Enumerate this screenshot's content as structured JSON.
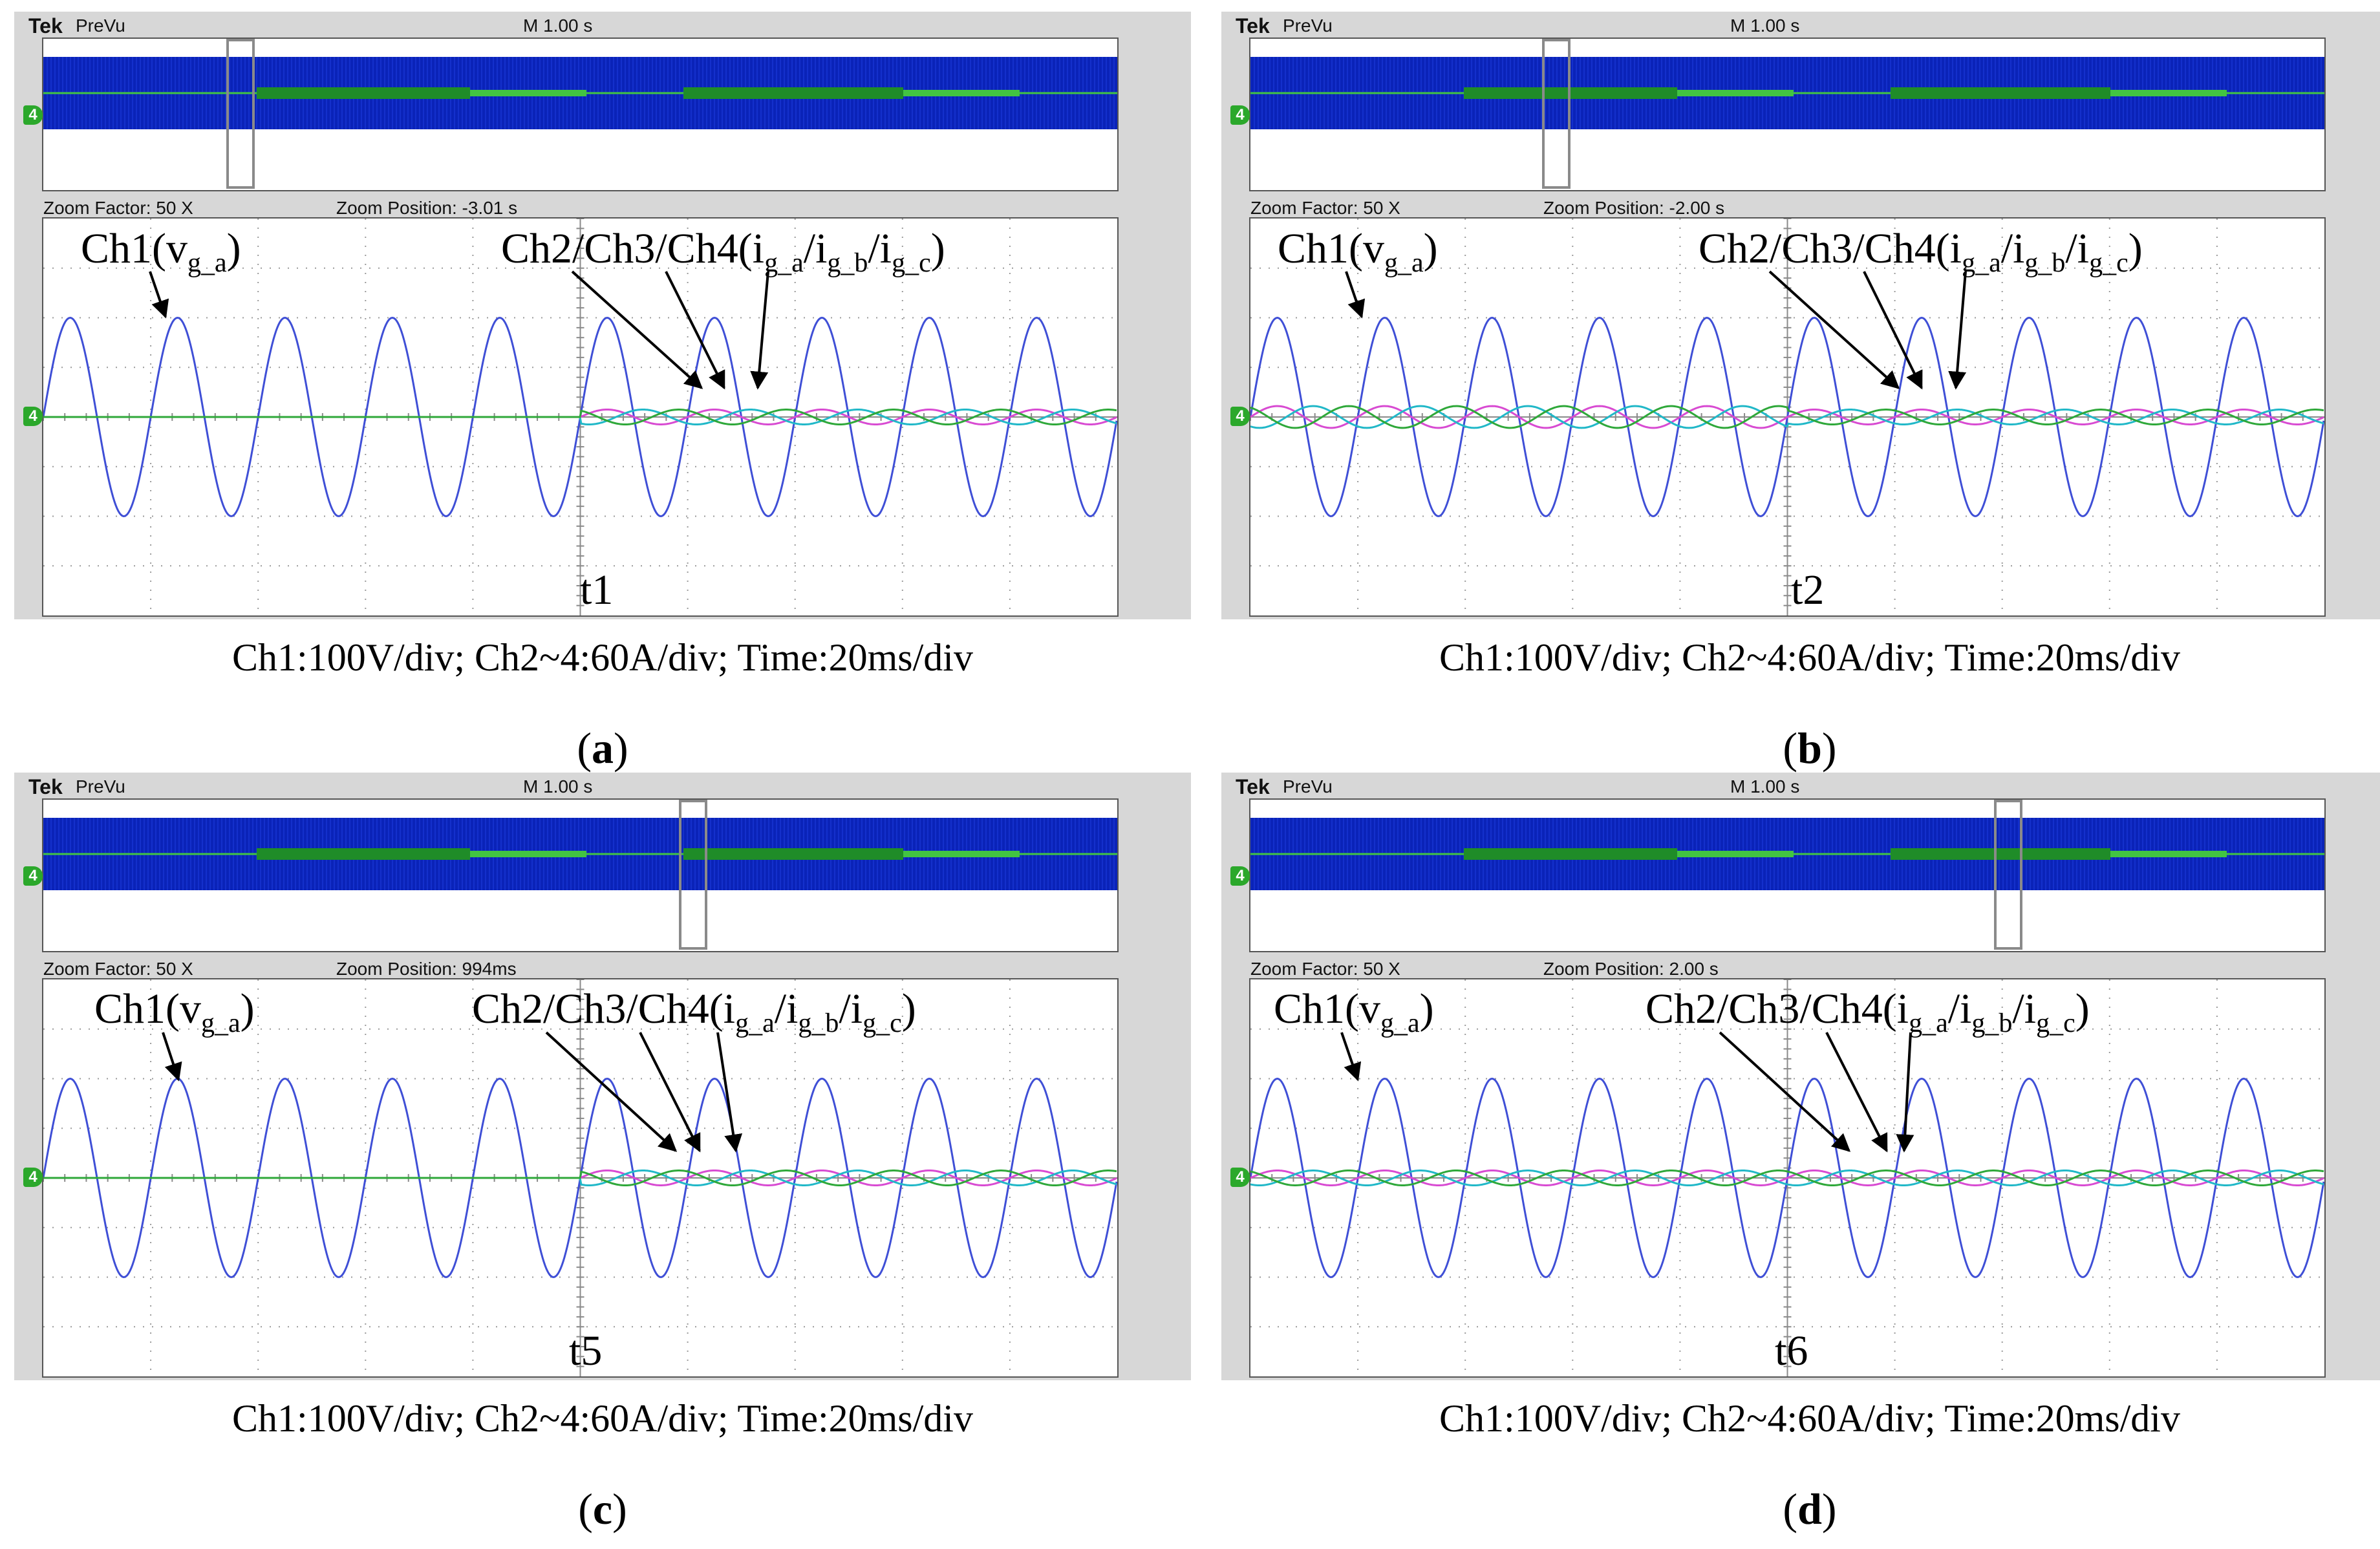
{
  "colors": {
    "ch1": "#3f4fd6",
    "ch2": "#d84bd2",
    "ch3": "#21b8c8",
    "ch4": "#2fa83a",
    "overview_band": "#0a23b8",
    "overview_green": "#1f8c28",
    "trigger": "#f29a1a"
  },
  "common": {
    "brand": "Tek",
    "mode": "PreVu",
    "timebase": "M 1.00 s",
    "zoom_factor": "Zoom Factor: 50 X",
    "ch1_label": "Ch1(v",
    "ch1_sub": "g_a",
    "ch234_label": "Ch2/Ch3/Ch4(i",
    "ch234_sub1": "g_a",
    "ch234_sub2": "g_b",
    "ch234_sub3": "g_c",
    "slash": "/",
    "close": ")",
    "scale_caption": "Ch1:100V/div; Ch2~4:60A/div; Time:20ms/div",
    "ground_marker": "4"
  },
  "panels": [
    {
      "id": "a",
      "zoom_position": "Zoom Position: -3.01 s",
      "event_label": "t1",
      "label_open": "(",
      "label_letter": "a",
      "label_close": ")"
    },
    {
      "id": "b",
      "zoom_position": "Zoom Position: -2.00 s",
      "event_label": "t2",
      "label_open": "(",
      "label_letter": "b",
      "label_close": ")"
    },
    {
      "id": "c",
      "zoom_position": "Zoom Position: 994ms",
      "event_label": "t5",
      "label_open": "(",
      "label_letter": "c",
      "label_close": ")"
    },
    {
      "id": "d",
      "zoom_position": "Zoom Position: 2.00 s",
      "event_label": "t6",
      "label_open": "(",
      "label_letter": "d",
      "label_close": ")"
    }
  ],
  "chart_data": [
    {
      "type": "line",
      "panel": "a",
      "x_unit": "ms",
      "x_range": [
        0,
        200
      ],
      "y_range": [
        -4,
        4
      ],
      "series": [
        {
          "channel": "Ch1",
          "amplitude_div": 2.0,
          "frequency_hz": 50,
          "phase_deg": 0
        },
        {
          "channel": "Ch2",
          "amplitude_div": 0.15,
          "frequency_hz": 50,
          "phase_deg": 0,
          "starts_at_ms": 100
        },
        {
          "channel": "Ch3",
          "amplitude_div": 0.15,
          "frequency_hz": 50,
          "phase_deg": -120,
          "starts_at_ms": 100
        },
        {
          "channel": "Ch4",
          "amplitude_div": 0.15,
          "frequency_hz": 50,
          "phase_deg": 120,
          "starts_at_ms": 100
        }
      ]
    },
    {
      "type": "line",
      "panel": "b",
      "x_unit": "ms",
      "x_range": [
        0,
        200
      ],
      "y_range": [
        -4,
        4
      ],
      "series": [
        {
          "channel": "Ch1",
          "amplitude_div": 2.0,
          "frequency_hz": 50,
          "phase_deg": 0
        },
        {
          "channel": "Ch2",
          "amplitude_div": 0.22,
          "frequency_hz": 50,
          "phase_deg": 0,
          "amplitude_after_ms": 100,
          "amplitude_after_div": 0.15
        },
        {
          "channel": "Ch3",
          "amplitude_div": 0.22,
          "frequency_hz": 50,
          "phase_deg": -120,
          "amplitude_after_ms": 100,
          "amplitude_after_div": 0.15
        },
        {
          "channel": "Ch4",
          "amplitude_div": 0.22,
          "frequency_hz": 50,
          "phase_deg": 120,
          "amplitude_after_ms": 100,
          "amplitude_after_div": 0.15
        }
      ]
    },
    {
      "type": "line",
      "panel": "c",
      "x_unit": "ms",
      "x_range": [
        0,
        200
      ],
      "y_range": [
        -4,
        4
      ],
      "series": [
        {
          "channel": "Ch1",
          "amplitude_div": 2.0,
          "frequency_hz": 50,
          "phase_deg": 0
        },
        {
          "channel": "Ch2",
          "amplitude_div": 0.15,
          "frequency_hz": 50,
          "phase_deg": 0,
          "starts_at_ms": 100
        },
        {
          "channel": "Ch3",
          "amplitude_div": 0.15,
          "frequency_hz": 50,
          "phase_deg": -120,
          "starts_at_ms": 100
        },
        {
          "channel": "Ch4",
          "amplitude_div": 0.15,
          "frequency_hz": 50,
          "phase_deg": 120,
          "starts_at_ms": 100
        }
      ]
    },
    {
      "type": "line",
      "panel": "d",
      "x_unit": "ms",
      "x_range": [
        0,
        200
      ],
      "y_range": [
        -4,
        4
      ],
      "series": [
        {
          "channel": "Ch1",
          "amplitude_div": 2.0,
          "frequency_hz": 50,
          "phase_deg": 0
        },
        {
          "channel": "Ch2",
          "amplitude_div": 0.15,
          "frequency_hz": 50,
          "phase_deg": 0
        },
        {
          "channel": "Ch3",
          "amplitude_div": 0.15,
          "frequency_hz": 50,
          "phase_deg": -120
        },
        {
          "channel": "Ch4",
          "amplitude_div": 0.15,
          "frequency_hz": 50,
          "phase_deg": 120
        }
      ]
    }
  ]
}
